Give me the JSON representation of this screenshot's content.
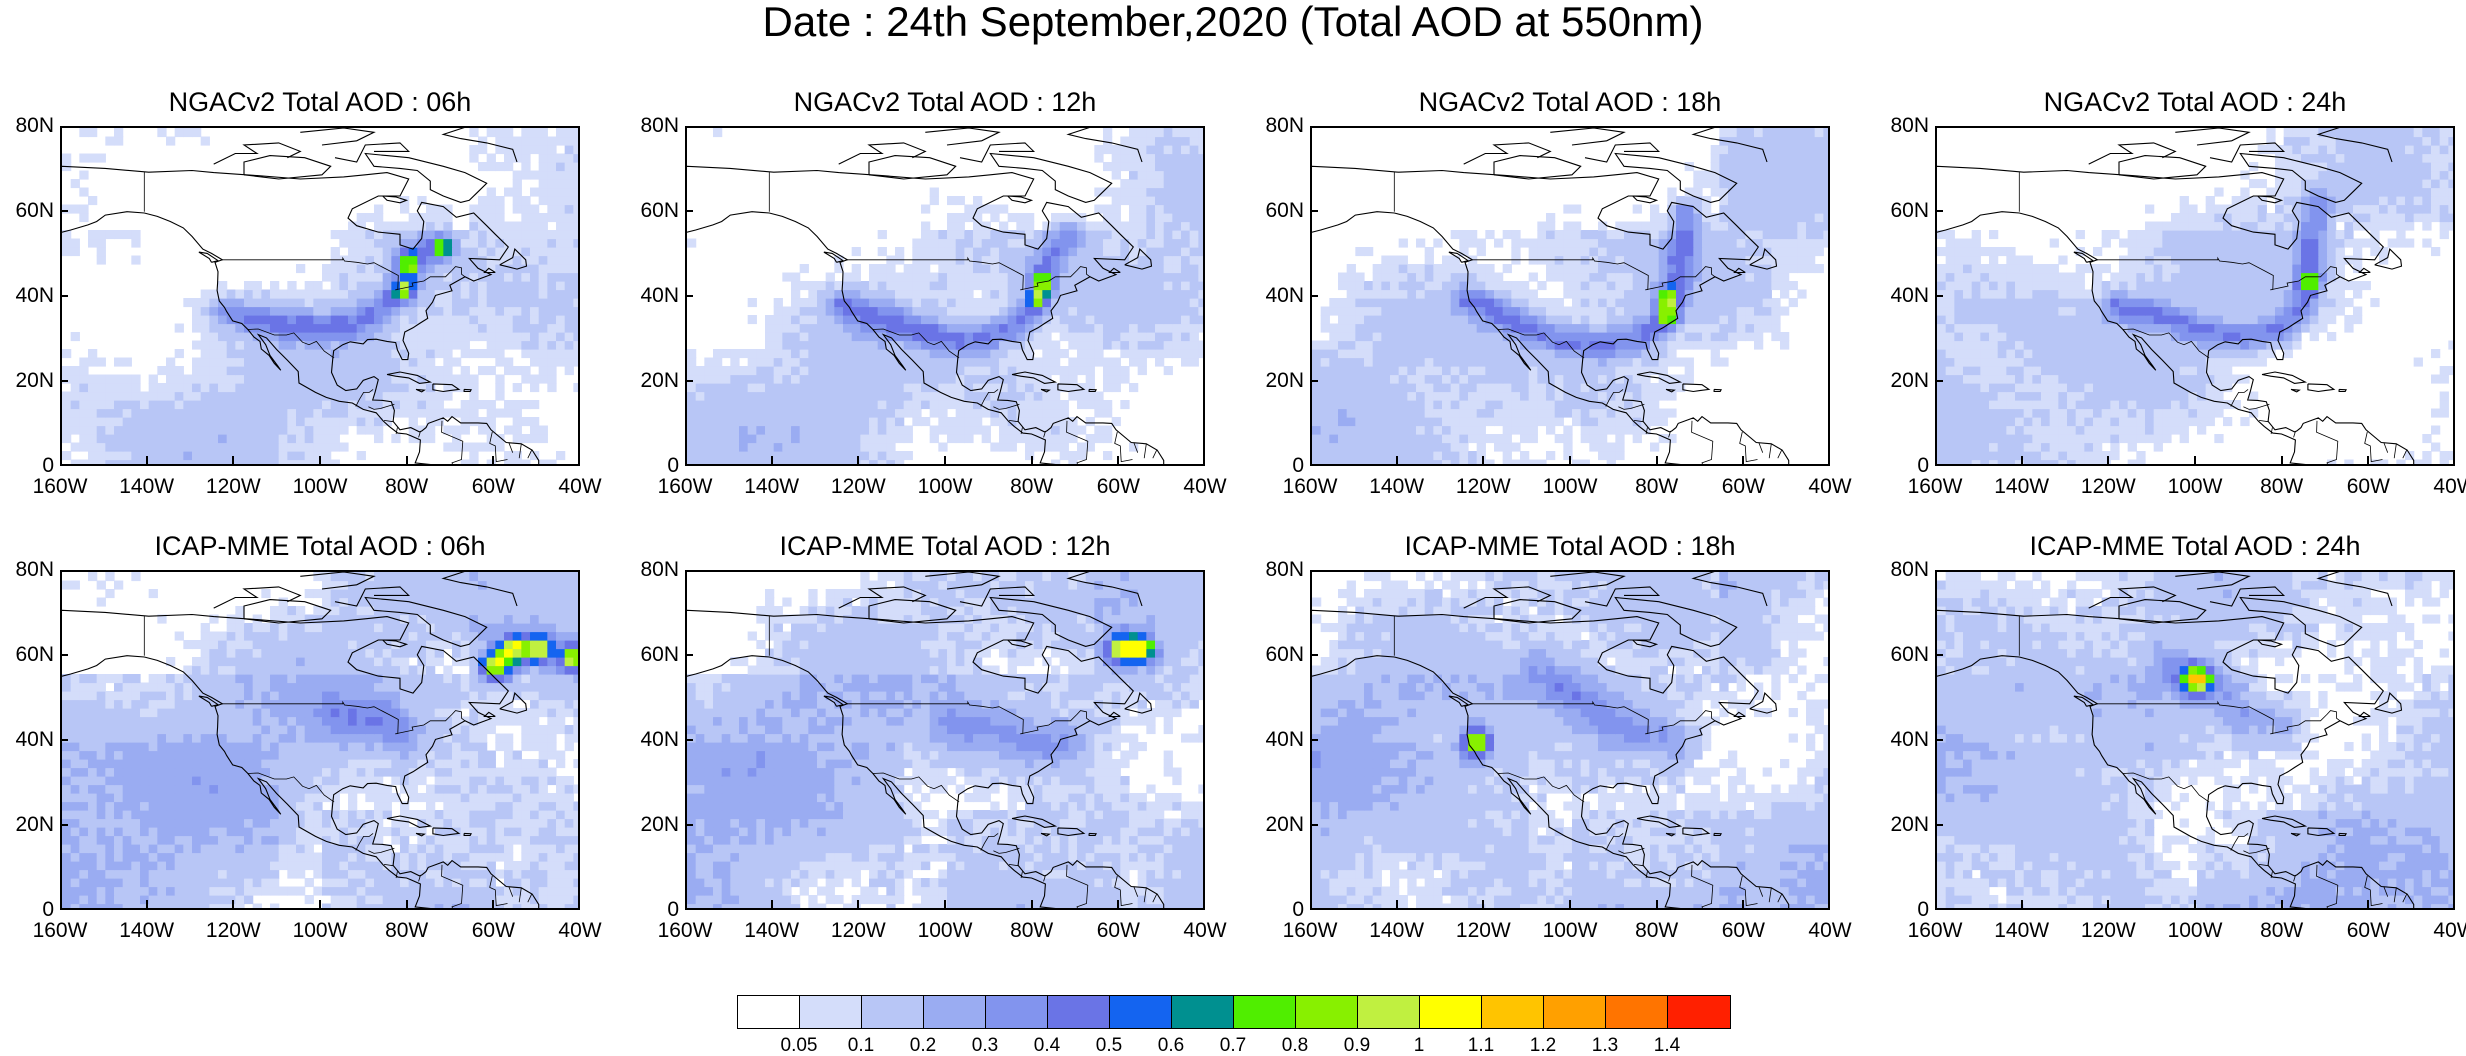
{
  "title": "Date : 24th September,2020 (Total AOD at 550nm)",
  "chart_data": {
    "type": "heatmap",
    "title": "Date : 24th September,2020 (Total AOD at 550nm)",
    "xlim": [
      -160,
      -40
    ],
    "ylim": [
      0,
      80
    ],
    "x_ticks": [
      "160W",
      "140W",
      "120W",
      "100W",
      "80W",
      "60W",
      "40W"
    ],
    "y_ticks": [
      "80N",
      "60N",
      "40N",
      "20N",
      "0"
    ],
    "panels": [
      {
        "title": "NGACv2 Total AOD : 06h",
        "model": "ngac",
        "plume": [
          [
            -122,
            37
          ],
          [
            -110,
            34
          ],
          [
            -100,
            33
          ],
          [
            -92,
            34
          ],
          [
            -86,
            38
          ],
          [
            -82,
            42
          ],
          [
            -80,
            46
          ],
          [
            -80,
            50
          ],
          [
            -74,
            52
          ]
        ],
        "hot": [
          [
            -81,
            42
          ],
          [
            -80,
            48
          ],
          [
            -72,
            52
          ]
        ]
      },
      {
        "title": "NGACv2 Total AOD : 12h",
        "model": "ngac",
        "plume": [
          [
            -124,
            38
          ],
          [
            -112,
            34
          ],
          [
            -102,
            31
          ],
          [
            -92,
            30
          ],
          [
            -84,
            34
          ],
          [
            -80,
            38
          ],
          [
            -78,
            44
          ],
          [
            -76,
            50
          ],
          [
            -72,
            55
          ]
        ],
        "hot": [
          [
            -79,
            40
          ],
          [
            -78,
            44
          ]
        ]
      },
      {
        "title": "NGACv2 Total AOD : 18h",
        "model": "ngac",
        "plume": [
          [
            -124,
            40
          ],
          [
            -112,
            34
          ],
          [
            -102,
            30
          ],
          [
            -92,
            29
          ],
          [
            -84,
            31
          ],
          [
            -78,
            36
          ],
          [
            -76,
            44
          ],
          [
            -74,
            54
          ],
          [
            -74,
            60
          ]
        ],
        "hot": [
          [
            -78,
            36
          ],
          [
            -78,
            40
          ]
        ]
      },
      {
        "title": "NGACv2 Total AOD : 24h",
        "model": "ngac",
        "plume": [
          [
            -118,
            38
          ],
          [
            -108,
            36
          ],
          [
            -98,
            32
          ],
          [
            -88,
            31
          ],
          [
            -80,
            33
          ],
          [
            -76,
            38
          ],
          [
            -74,
            46
          ],
          [
            -74,
            54
          ],
          [
            -72,
            62
          ]
        ],
        "hot": [
          [
            -74,
            44
          ]
        ]
      },
      {
        "title": "ICAP-MME Total AOD : 06h",
        "model": "icap",
        "plume": [
          [
            -96,
            46
          ],
          [
            -88,
            46
          ],
          [
            -82,
            42
          ]
        ],
        "hot": [
          [
            -60,
            58
          ],
          [
            -56,
            62
          ],
          [
            -50,
            62
          ],
          [
            -42,
            60
          ]
        ]
      },
      {
        "title": "ICAP-MME Total AOD : 12h",
        "model": "icap",
        "plume": [
          [
            -98,
            44
          ],
          [
            -86,
            42
          ],
          [
            -80,
            40
          ],
          [
            -72,
            40
          ]
        ],
        "hot": [
          [
            -60,
            62
          ],
          [
            -55,
            62
          ]
        ]
      },
      {
        "title": "ICAP-MME Total AOD : 18h",
        "model": "icap",
        "plume": [
          [
            -108,
            58
          ],
          [
            -100,
            52
          ],
          [
            -90,
            44
          ],
          [
            -80,
            42
          ],
          [
            -76,
            40
          ]
        ],
        "hot": [
          [
            -122,
            40
          ]
        ]
      },
      {
        "title": "ICAP-MME Total AOD : 24h",
        "model": "icap",
        "plume": [
          [
            -106,
            58
          ],
          [
            -98,
            54
          ],
          [
            -88,
            46
          ],
          [
            -80,
            44
          ]
        ],
        "hot": [
          [
            -100,
            55
          ]
        ]
      }
    ],
    "colorbar": {
      "labels": [
        "0.05",
        "0.1",
        "0.2",
        "0.3",
        "0.4",
        "0.5",
        "0.6",
        "0.7",
        "0.8",
        "0.9",
        "1",
        "1.1",
        "1.2",
        "1.3",
        "1.4"
      ],
      "colors": [
        "#ffffff",
        "#d4ddfa",
        "#b8c6f6",
        "#9aacf2",
        "#8294ee",
        "#6a74e6",
        "#1464f0",
        "#009090",
        "#50ee00",
        "#88f000",
        "#c0f040",
        "#ffff00",
        "#ffc400",
        "#ffa000",
        "#ff7400",
        "#ff2000"
      ]
    }
  }
}
